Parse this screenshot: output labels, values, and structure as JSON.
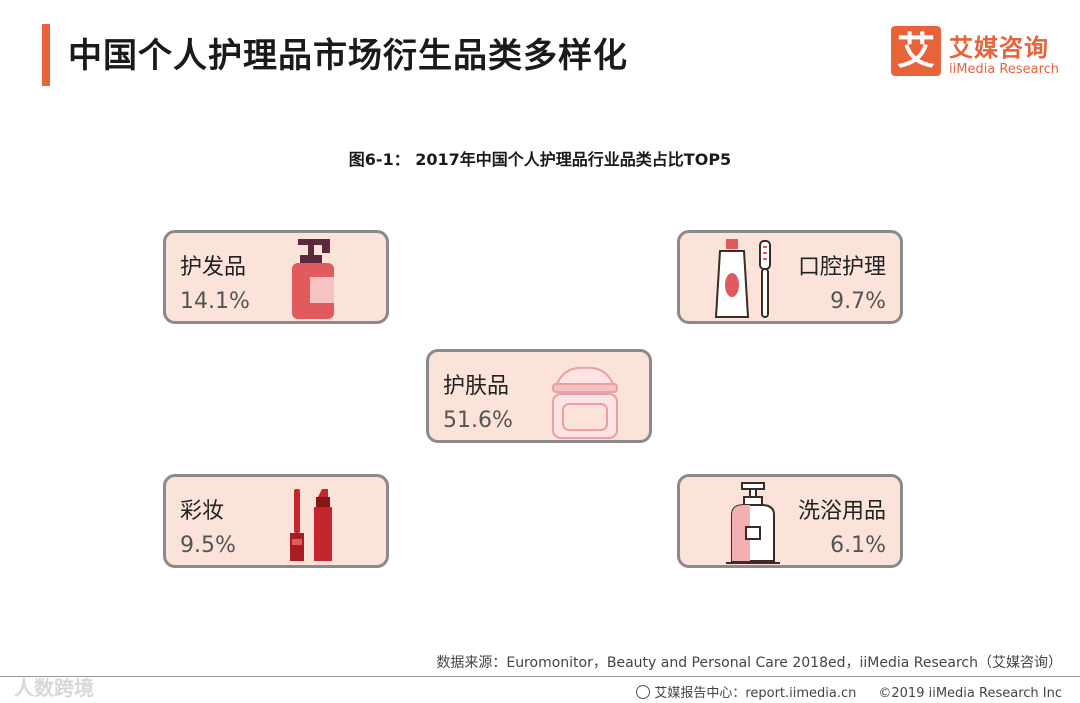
{
  "header": {
    "title": "中国个人护理品市场衍生品类多样化",
    "logo_mark": "艾",
    "logo_cn": "艾媒咨询",
    "logo_en": "iiMedia Research"
  },
  "chart_data": {
    "type": "table",
    "title": "图6-1： 2017年中国个人护理品行业品类占比TOP5",
    "categories": [
      "护发品",
      "口腔护理",
      "护肤品",
      "彩妆",
      "洗浴用品"
    ],
    "values": [
      14.1,
      9.7,
      51.6,
      9.5,
      6.1
    ],
    "value_labels": [
      "14.1%",
      "9.7%",
      "51.6%",
      "9.5%",
      "6.1%"
    ],
    "unit": "%"
  },
  "source": "数据来源：Euromonitor，Beauty and Personal Care 2018ed，iiMedia Research（艾媒咨询）",
  "footer": {
    "center": "艾媒报告中心：report.iimedia.cn",
    "copyright": "©2019  iiMedia Research  Inc"
  },
  "watermark": "人数跨境",
  "colors": {
    "accent": "#e8623a",
    "card_fill": "#fbe3da",
    "card_border": "#8a8a8a",
    "icon_red": "#e05a5e",
    "icon_dark": "#5a2a3a"
  }
}
